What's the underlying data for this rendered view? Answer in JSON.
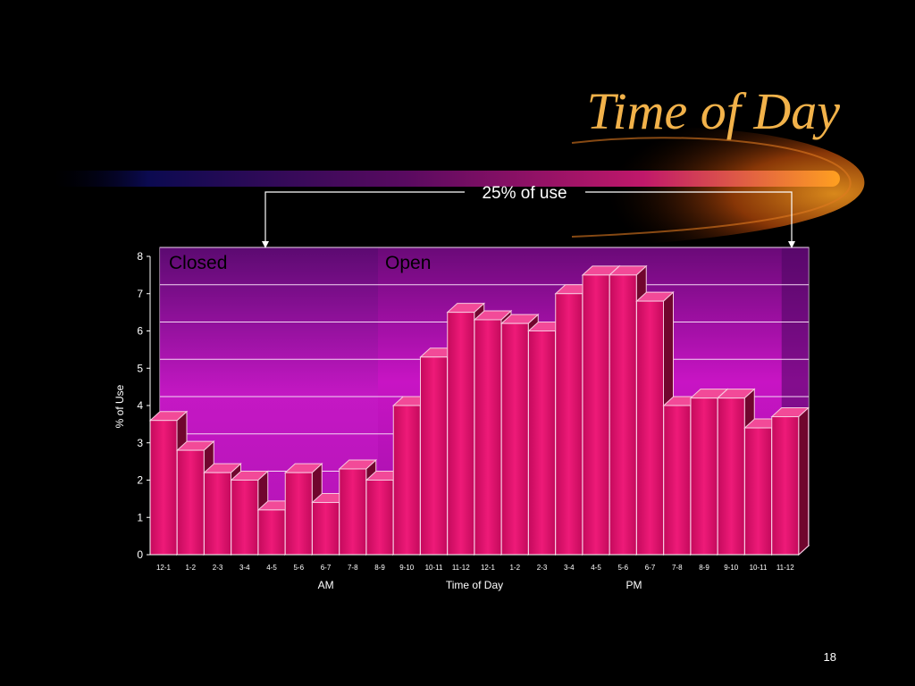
{
  "slide": {
    "title": "Time of Day",
    "page_number": "18",
    "callout": "25% of use",
    "colors": {
      "title": "#f2b24a",
      "bar": "#e0126c",
      "panel": "#c810c0",
      "callout_line": "#ffffff"
    }
  },
  "chart_data": {
    "type": "bar",
    "title": "",
    "xlabel": "Time of Day",
    "ylabel": "% of Use",
    "ylim": [
      0,
      8
    ],
    "yticks": [
      0,
      1,
      2,
      3,
      4,
      5,
      6,
      7,
      8
    ],
    "grid": true,
    "categories": [
      "12-1",
      "1-2",
      "2-3",
      "3-4",
      "4-5",
      "5-6",
      "6-7",
      "7-8",
      "8-9",
      "9-10",
      "10-11",
      "11-12",
      "12-1",
      "1-2",
      "2-3",
      "3-4",
      "4-5",
      "5-6",
      "6-7",
      "7-8",
      "8-9",
      "9-10",
      "10-11",
      "11-12"
    ],
    "values": [
      3.6,
      2.8,
      2.2,
      2.0,
      1.2,
      2.2,
      1.4,
      2.3,
      2.0,
      4.0,
      5.3,
      6.5,
      6.3,
      6.2,
      6.0,
      7.0,
      7.5,
      7.5,
      6.8,
      4.0,
      4.2,
      4.2,
      3.4,
      3.7
    ],
    "group_labels": [
      "AM",
      "PM"
    ],
    "regions": [
      {
        "label": "Closed",
        "from": 0,
        "to": 8
      },
      {
        "label": "Open",
        "from": 8,
        "to": 23
      }
    ]
  }
}
